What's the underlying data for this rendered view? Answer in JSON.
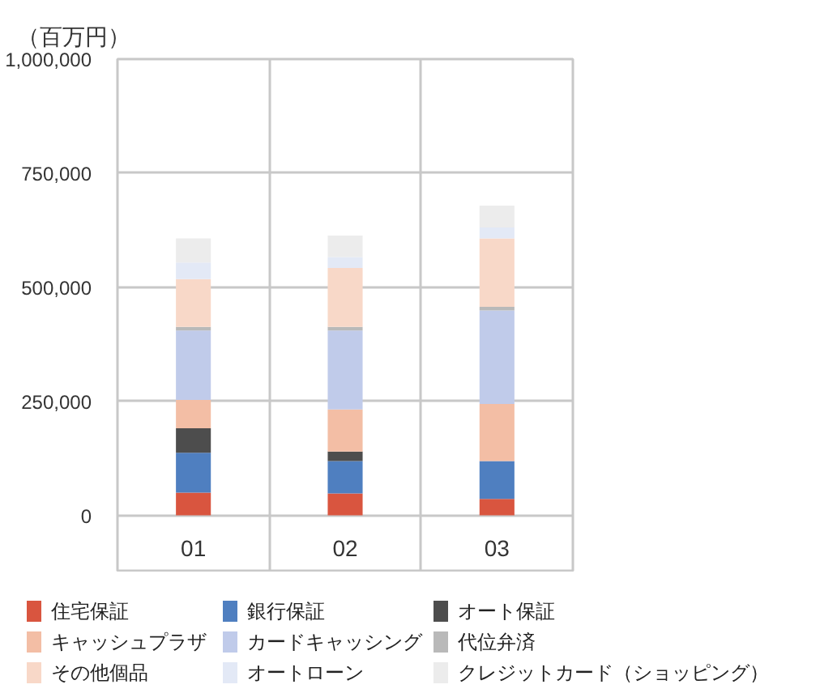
{
  "chart_data": {
    "type": "bar",
    "ylabel": "（百万円）",
    "categories": [
      "01",
      "02",
      "03"
    ],
    "stacked": true,
    "series": [
      {
        "name": "住宅保証",
        "color": "#d9553f",
        "values": [
          50000,
          48000,
          36000
        ]
      },
      {
        "name": "銀行保証",
        "color": "#4f7fc0",
        "values": [
          87000,
          71000,
          83000
        ]
      },
      {
        "name": "オート保証",
        "color": "#4d4d4d",
        "values": [
          54000,
          21000,
          null
        ]
      },
      {
        "name": "キャッシュプラザ",
        "color": "#f3bea5",
        "values": [
          62000,
          92000,
          125000
        ]
      },
      {
        "name": "カードキャッシング",
        "color": "#c0cbea",
        "values": [
          152000,
          173000,
          205000
        ]
      },
      {
        "name": "代位弁済",
        "color": "#b9b9b9",
        "values": [
          8000,
          8000,
          8000
        ]
      },
      {
        "name": "その他個品",
        "color": "#f8d8c8",
        "values": [
          105000,
          129000,
          150000
        ]
      },
      {
        "name": "オートローン",
        "color": "#e3e9f6",
        "values": [
          36000,
          24000,
          24000
        ]
      },
      {
        "name": "クレジットカード（ショッピング）",
        "color": "#ececec",
        "values": [
          53000,
          47000,
          48000
        ]
      }
    ],
    "ylim": [
      -125000,
      1000000
    ],
    "yticks": [
      0,
      {
        "value": 250000,
        "label": "250,000"
      },
      {
        "value": 500000,
        "label": "500,000"
      },
      {
        "value": 750000,
        "label": "750,000"
      },
      {
        "value": 1000000,
        "label": "1,000,000"
      }
    ],
    "grid": true,
    "legend": "bottom"
  }
}
